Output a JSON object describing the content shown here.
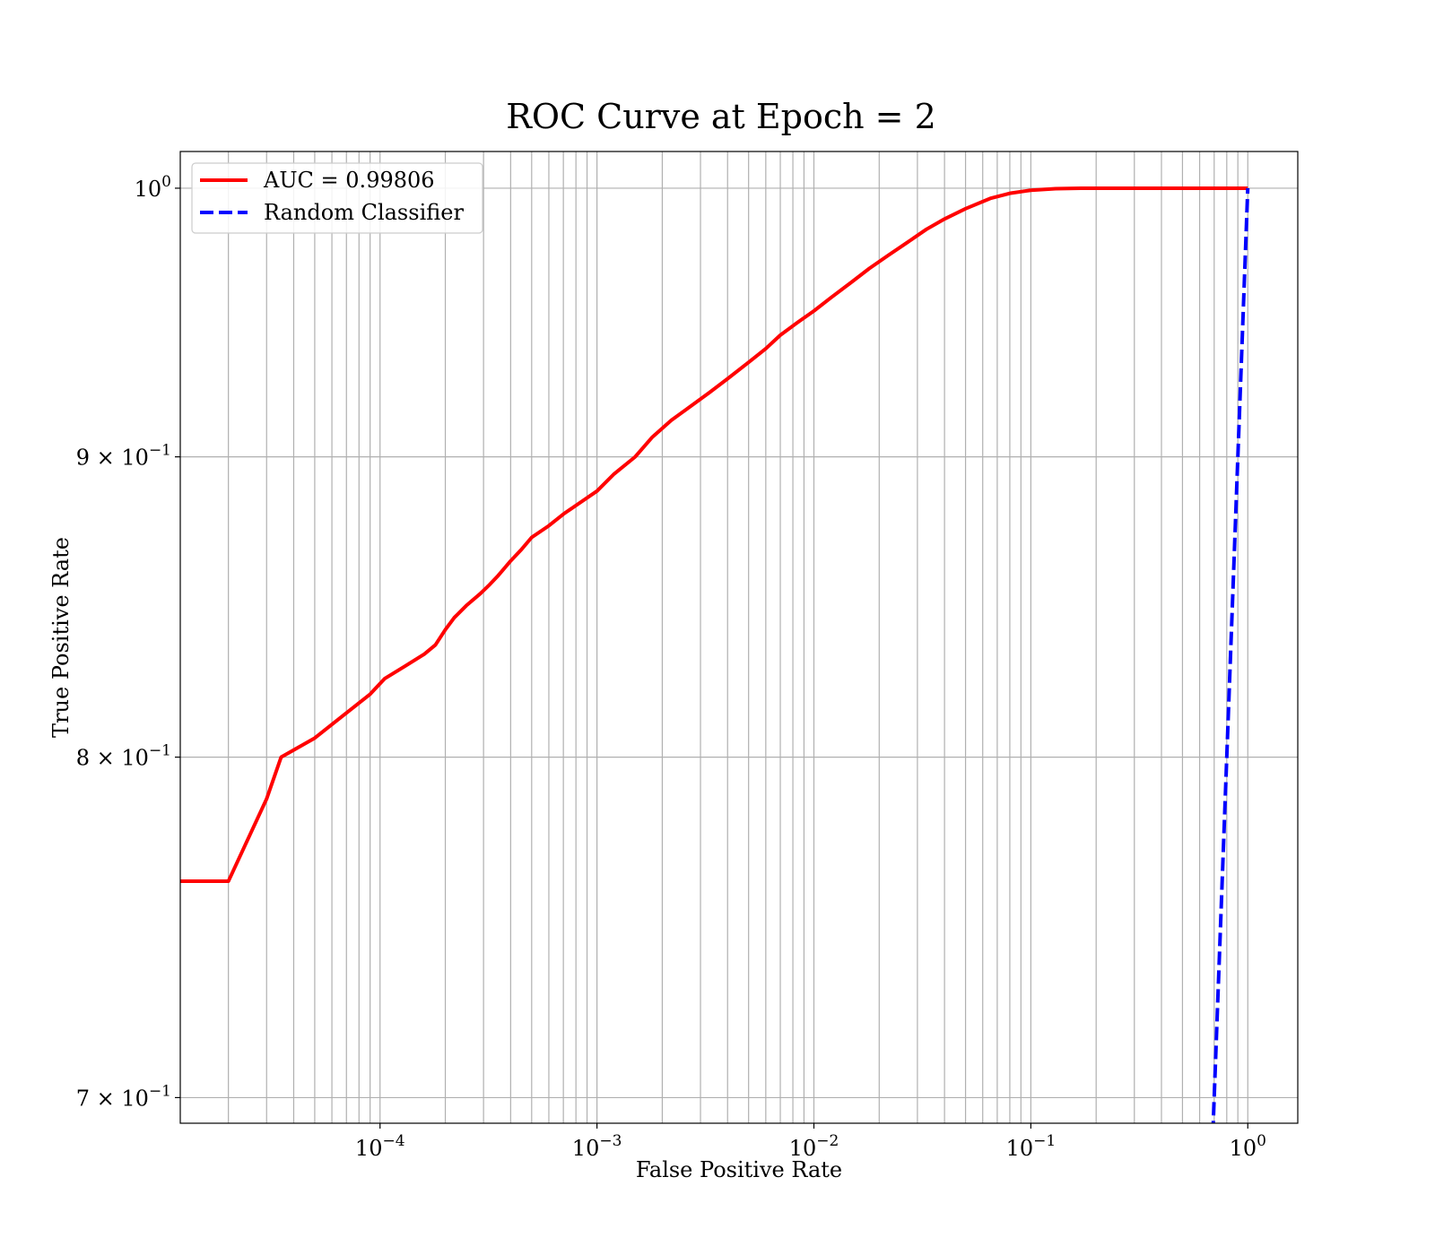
{
  "chart_data": {
    "type": "line",
    "title": "ROC Curve at Epoch = 2",
    "xlabel": "False Positive Rate",
    "ylabel": "True Positive Rate",
    "xscale": "log",
    "yscale": "log",
    "xlim": [
      1.2e-05,
      1.7
    ],
    "ylim": [
      0.693,
      1.0145
    ],
    "x_ticks": [
      {
        "value": 0.0001,
        "label_base": "10",
        "label_exp": "−4"
      },
      {
        "value": 0.001,
        "label_base": "10",
        "label_exp": "−3"
      },
      {
        "value": 0.01,
        "label_base": "10",
        "label_exp": "−2"
      },
      {
        "value": 0.1,
        "label_base": "10",
        "label_exp": "−1"
      },
      {
        "value": 1,
        "label_base": "10",
        "label_exp": "0"
      }
    ],
    "y_ticks": [
      {
        "value": 1.0,
        "label_base": "10",
        "label_exp": "0"
      },
      {
        "value": 0.9,
        "label_base": "9 × 10",
        "label_exp": "−1"
      },
      {
        "value": 0.8,
        "label_base": "8 × 10",
        "label_exp": "−1"
      },
      {
        "value": 0.7,
        "label_base": "7 × 10",
        "label_exp": "−1"
      }
    ],
    "grid": true,
    "legend_position": "top-left",
    "series": [
      {
        "name": "AUC = 0.99806",
        "color": "#ff0000",
        "style": "solid",
        "x": [
          1.2e-05,
          2e-05,
          3e-05,
          3.5e-05,
          5e-05,
          7e-05,
          9e-05,
          0.000105,
          0.00013,
          0.00016,
          0.00018,
          0.0002,
          0.00022,
          0.00025,
          0.00029,
          0.00032,
          0.00035,
          0.0004,
          0.00045,
          0.0005,
          0.0006,
          0.0007,
          0.0008,
          0.001,
          0.0012,
          0.0015,
          0.0018,
          0.0022,
          0.0027,
          0.0033,
          0.004,
          0.005,
          0.006,
          0.007,
          0.0085,
          0.01,
          0.012,
          0.015,
          0.018,
          0.022,
          0.027,
          0.033,
          0.04,
          0.05,
          0.065,
          0.08,
          0.1,
          0.13,
          0.17,
          0.25,
          0.4,
          0.6,
          1.0
        ],
        "y": [
          0.762,
          0.762,
          0.787,
          0.8,
          0.806,
          0.814,
          0.82,
          0.825,
          0.829,
          0.833,
          0.836,
          0.841,
          0.845,
          0.849,
          0.853,
          0.856,
          0.859,
          0.864,
          0.868,
          0.872,
          0.876,
          0.88,
          0.883,
          0.888,
          0.894,
          0.9,
          0.907,
          0.913,
          0.918,
          0.923,
          0.928,
          0.934,
          0.939,
          0.944,
          0.949,
          0.953,
          0.958,
          0.964,
          0.969,
          0.974,
          0.979,
          0.984,
          0.988,
          0.992,
          0.996,
          0.998,
          0.9992,
          0.9998,
          1.0,
          1.0,
          1.0,
          1.0,
          1.0
        ]
      },
      {
        "name": "Random Classifier",
        "color": "#0000ff",
        "style": "dashed",
        "x": [
          0.69,
          0.75,
          0.82,
          0.9,
          1.0
        ],
        "y": [
          0.69,
          0.75,
          0.82,
          0.9,
          1.0
        ]
      }
    ]
  }
}
